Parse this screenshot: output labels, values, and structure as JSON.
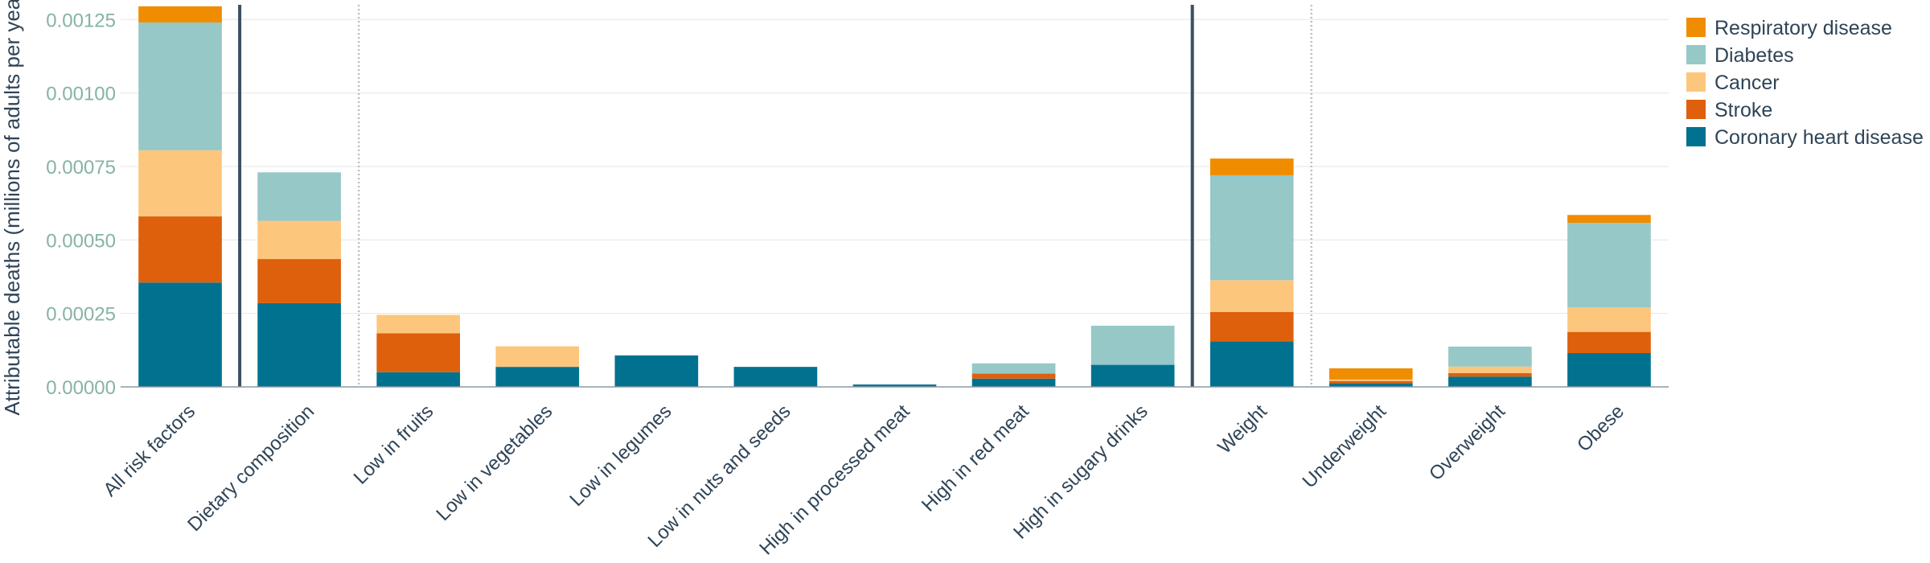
{
  "chart_data": {
    "type": "bar",
    "stacked": true,
    "ylabel": "Attributable deaths (millions of adults per year)",
    "xlabel": "",
    "ylim": [
      0,
      0.0013
    ],
    "yticks": [
      0,
      0.00025,
      0.0005,
      0.00075,
      0.001,
      0.00125
    ],
    "ytick_labels": [
      "0.00000",
      "0.00025",
      "0.00050",
      "0.00075",
      "0.00100",
      "0.00125"
    ],
    "grid": true,
    "legend_position": "top-right",
    "categories": [
      "All risk factors",
      "Dietary composition",
      "Low in fruits",
      "Low in vegetables",
      "Low in legumes",
      "Low in nuts and seeds",
      "High in processed meat",
      "High in red meat",
      "High in sugary drinks",
      "Weight",
      "Underweight",
      "Overweight",
      "Obese"
    ],
    "group_separators": [
      {
        "after_index": 0,
        "style": "solid"
      },
      {
        "after_index": 1,
        "style": "dotted"
      },
      {
        "after_index": 8,
        "style": "solid"
      },
      {
        "after_index": 9,
        "style": "dotted"
      }
    ],
    "series": [
      {
        "name": "Coronary heart disease",
        "color": "#00728f",
        "values": [
          0.000355,
          0.000285,
          5e-05,
          6.8e-05,
          0.000107,
          6.8e-05,
          8e-06,
          2.8e-05,
          7.5e-05,
          0.000155,
          1.2e-05,
          3.5e-05,
          0.000115
        ]
      },
      {
        "name": "Stroke",
        "color": "#de600c",
        "values": [
          0.000225,
          0.00015,
          0.000132,
          0,
          0,
          0,
          0,
          1.7e-05,
          0,
          0.0001,
          8e-06,
          1.2e-05,
          7.2e-05
        ]
      },
      {
        "name": "Cancer",
        "color": "#fdc67d",
        "values": [
          0.000225,
          0.00013,
          6.3e-05,
          7e-05,
          0,
          0,
          0,
          0,
          0,
          0.000108,
          5e-06,
          2.2e-05,
          8.3e-05
        ]
      },
      {
        "name": "Diabetes",
        "color": "#95c8c6",
        "values": [
          0.000435,
          0.000165,
          0,
          0,
          0,
          0,
          0,
          3.5e-05,
          0.000133,
          0.000357,
          0,
          6.8e-05,
          0.000288
        ]
      },
      {
        "name": "Respiratory disease",
        "color": "#f08c00",
        "values": [
          5.5e-05,
          0,
          0,
          0,
          0,
          0,
          0,
          0,
          0,
          5.7e-05,
          3.8e-05,
          0,
          2.7e-05
        ]
      }
    ]
  }
}
